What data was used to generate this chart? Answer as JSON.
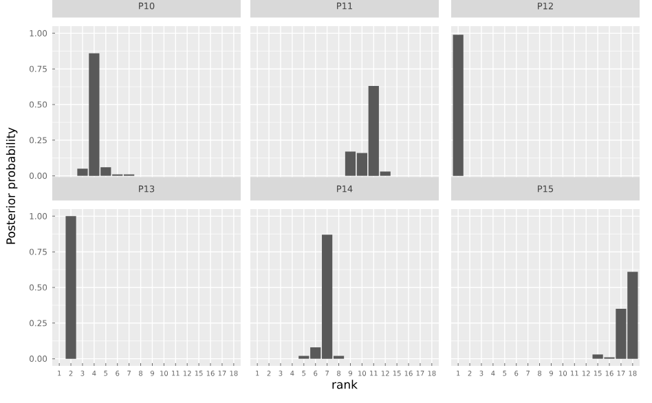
{
  "chart_data": [
    {
      "type": "bar",
      "title": "P10",
      "ylabel": "Posterior probability",
      "categories": [
        "1",
        "2",
        "3",
        "4",
        "5",
        "6",
        "7",
        "8",
        "9",
        "10",
        "11",
        "12",
        "15",
        "16",
        "17",
        "18"
      ],
      "values": [
        null,
        null,
        0.05,
        0.86,
        0.06,
        0.01,
        0.01,
        null,
        null,
        null,
        null,
        null,
        null,
        null,
        null,
        null
      ],
      "color": "#595959",
      "ylim": [
        -0.05,
        1.05
      ],
      "yticks": [
        {
          "value": 0,
          "label": "0.00"
        },
        {
          "value": 0.25,
          "label": "0.25"
        },
        {
          "value": 0.5,
          "label": "0.50"
        },
        {
          "value": 0.75,
          "label": "0.75"
        },
        {
          "value": 1,
          "label": "1.00"
        }
      ],
      "grid": true,
      "tick_labels": "y"
    },
    {
      "type": "bar",
      "title": "P11",
      "categories": [
        "1",
        "2",
        "3",
        "4",
        "5",
        "6",
        "7",
        "8",
        "9",
        "10",
        "11",
        "12",
        "15",
        "16",
        "17",
        "18"
      ],
      "values": [
        null,
        null,
        null,
        null,
        null,
        null,
        null,
        null,
        0.17,
        0.16,
        0.63,
        0.03,
        null,
        null,
        null,
        null
      ],
      "color": "#595959",
      "ylim": [
        -0.05,
        1.05
      ],
      "yticks": [
        0,
        0.25,
        0.5,
        0.75,
        1
      ],
      "grid": true,
      "tick_labels": false
    },
    {
      "type": "bar",
      "title": "P12",
      "categories": [
        "1",
        "2",
        "3",
        "4",
        "5",
        "6",
        "7",
        "8",
        "9",
        "10",
        "11",
        "12",
        "15",
        "16",
        "17",
        "18"
      ],
      "values": [
        0.99,
        null,
        null,
        null,
        null,
        null,
        null,
        null,
        null,
        null,
        null,
        null,
        null,
        null,
        null,
        null
      ],
      "color": "#595959",
      "ylim": [
        -0.05,
        1.05
      ],
      "yticks": [
        0,
        0.25,
        0.5,
        0.75,
        1
      ],
      "grid": true,
      "tick_labels": false
    },
    {
      "type": "bar",
      "title": "P13",
      "categories": [
        "1",
        "2",
        "3",
        "4",
        "5",
        "6",
        "7",
        "8",
        "9",
        "10",
        "11",
        "12",
        "15",
        "16",
        "17",
        "18"
      ],
      "values": [
        null,
        1.0,
        null,
        null,
        null,
        null,
        null,
        null,
        null,
        null,
        null,
        null,
        null,
        null,
        null,
        null
      ],
      "color": "#595959",
      "ylim": [
        -0.05,
        1.05
      ],
      "yticks": [
        {
          "value": 0,
          "label": "0.00"
        },
        {
          "value": 0.25,
          "label": "0.25"
        },
        {
          "value": 0.5,
          "label": "0.50"
        },
        {
          "value": 0.75,
          "label": "0.75"
        },
        {
          "value": 1,
          "label": "1.00"
        }
      ],
      "grid": true
    },
    {
      "type": "bar",
      "title": "P14",
      "xlabel": "rank",
      "categories": [
        "1",
        "2",
        "3",
        "4",
        "5",
        "6",
        "7",
        "8",
        "9",
        "10",
        "11",
        "12",
        "15",
        "16",
        "17",
        "18"
      ],
      "values": [
        null,
        null,
        null,
        null,
        0.02,
        0.08,
        0.87,
        0.02,
        null,
        null,
        null,
        null,
        null,
        null,
        null,
        null
      ],
      "color": "#595959",
      "ylim": [
        -0.05,
        1.05
      ],
      "yticks": [
        0,
        0.25,
        0.5,
        0.75,
        1
      ],
      "grid": true,
      "tick_labels": "x"
    },
    {
      "type": "bar",
      "title": "P15",
      "categories": [
        "1",
        "2",
        "3",
        "4",
        "5",
        "6",
        "7",
        "8",
        "9",
        "10",
        "11",
        "12",
        "15",
        "16",
        "17",
        "18"
      ],
      "values": [
        null,
        null,
        null,
        null,
        null,
        null,
        null,
        null,
        null,
        null,
        null,
        null,
        0.03,
        0.01,
        0.35,
        0.61
      ],
      "color": "#595959",
      "ylim": [
        -0.05,
        1.05
      ],
      "yticks": [
        0,
        0.25,
        0.5,
        0.75,
        1
      ],
      "grid": true,
      "tick_labels": "x"
    }
  ]
}
